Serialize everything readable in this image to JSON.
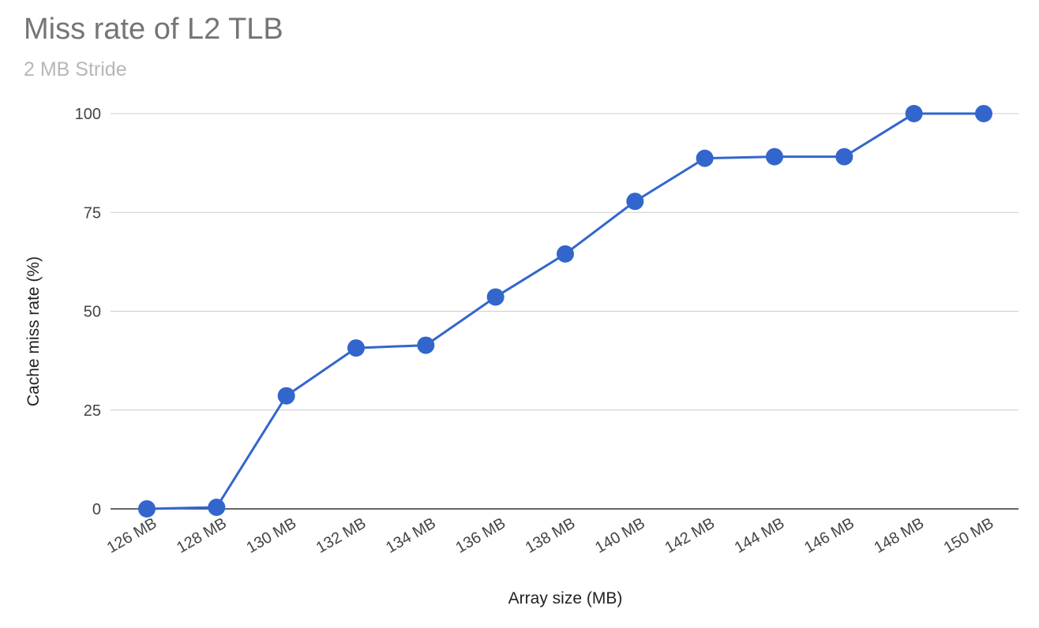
{
  "chart_data": {
    "type": "line",
    "title": "Miss rate of L2 TLB",
    "subtitle": "2 MB Stride",
    "xlabel": "Array size (MB)",
    "ylabel": "Cache miss rate (%)",
    "categories": [
      "126 MB",
      "128 MB",
      "130 MB",
      "132 MB",
      "134 MB",
      "136 MB",
      "138 MB",
      "140 MB",
      "142 MB",
      "144 MB",
      "146 MB",
      "148 MB",
      "150 MB"
    ],
    "series": [
      {
        "values": [
          0,
          0.4,
          28.6,
          40.7,
          41.4,
          53.6,
          64.5,
          77.8,
          88.7,
          89.1,
          89.1,
          100,
          100
        ],
        "color": "#3366cc"
      }
    ],
    "yticks": [
      0,
      25,
      50,
      75,
      100
    ],
    "ylim": [
      0,
      100
    ],
    "grid": true,
    "legend": "none"
  }
}
